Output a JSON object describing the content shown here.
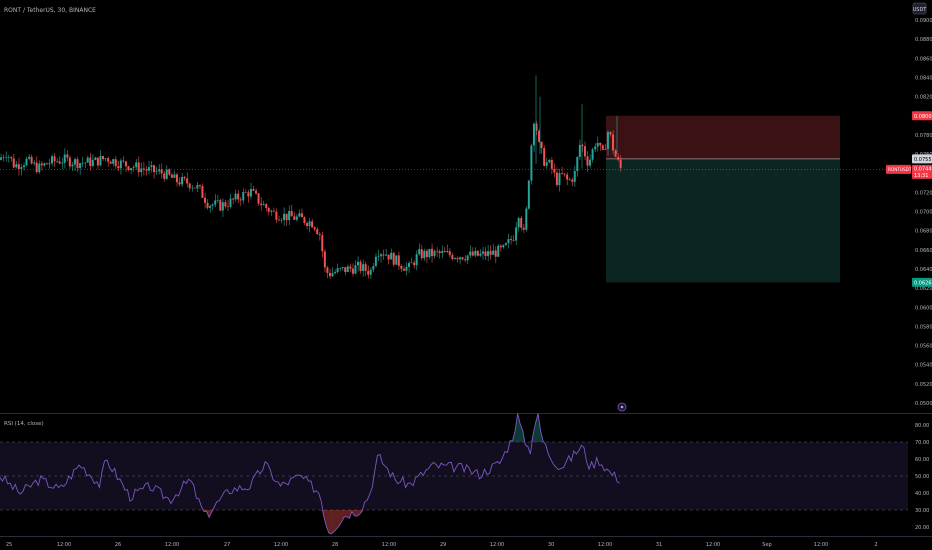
{
  "header": {
    "symbol_title": "RONT / TetherUS, 30, BINANCE",
    "currency_button": "USDT"
  },
  "price_axis": {
    "ticks": [
      "0.0900",
      "0.0880",
      "0.0860",
      "0.0840",
      "0.0820",
      "0.0800",
      "0.0780",
      "0.0760",
      "0.0740",
      "0.0720",
      "0.0700",
      "0.0680",
      "0.0660",
      "0.0640",
      "0.0620",
      "0.0600",
      "0.0580",
      "0.0560",
      "0.0540",
      "0.0520",
      "0.0500"
    ],
    "stop_label": "0.0800",
    "entry_label": "0.0755",
    "last_symbol": "RONTUSDT",
    "last_price": "0.0744",
    "countdown": "13:31",
    "target_label": "0.0626"
  },
  "rsi": {
    "title": "RSI (14, close)",
    "ticks": [
      "80.00",
      "70.00",
      "60.00",
      "50.00",
      "40.00",
      "30.00",
      "20.00"
    ]
  },
  "time_axis": {
    "ticks": [
      "25",
      "12:00",
      "26",
      "12:00",
      "27",
      "12:00",
      "28",
      "12:00",
      "29",
      "12:00",
      "30",
      "12:00",
      "31",
      "12:00",
      "Sep",
      "12:00",
      "2"
    ]
  },
  "colors": {
    "up": "#26a69a",
    "down": "#ef5350",
    "rsi_line": "#7e57c2",
    "stop_zone": "#3a1214",
    "target_zone": "#0b2622",
    "tag_red": "#f23645",
    "tag_teal": "#089981"
  },
  "events_icon": "event-marker-icon",
  "chart_data": {
    "type": "candlestick",
    "title": "RONT / TetherUS, 30, BINANCE",
    "ylim": [
      0.0494,
      0.0914
    ],
    "price_path": [
      [
        0,
        0.0754
      ],
      [
        8,
        0.0762
      ],
      [
        16,
        0.0748
      ],
      [
        28,
        0.0753
      ],
      [
        40,
        0.0745
      ],
      [
        52,
        0.0752
      ],
      [
        66,
        0.0754
      ],
      [
        80,
        0.0751
      ],
      [
        96,
        0.0752
      ],
      [
        108,
        0.0756
      ],
      [
        120,
        0.0751
      ],
      [
        135,
        0.0747
      ],
      [
        150,
        0.0743
      ],
      [
        165,
        0.074
      ],
      [
        178,
        0.0732
      ],
      [
        190,
        0.073
      ],
      [
        200,
        0.0724
      ],
      [
        210,
        0.0708
      ],
      [
        222,
        0.0706
      ],
      [
        232,
        0.071
      ],
      [
        242,
        0.0716
      ],
      [
        252,
        0.0721
      ],
      [
        262,
        0.0709
      ],
      [
        275,
        0.0698
      ],
      [
        288,
        0.0695
      ],
      [
        300,
        0.0693
      ],
      [
        315,
        0.0688
      ],
      [
        322,
        0.0675
      ],
      [
        326,
        0.064
      ],
      [
        330,
        0.0635
      ],
      [
        345,
        0.0639
      ],
      [
        360,
        0.0642
      ],
      [
        372,
        0.0637
      ],
      [
        378,
        0.066
      ],
      [
        388,
        0.0656
      ],
      [
        398,
        0.0648
      ],
      [
        410,
        0.064
      ],
      [
        420,
        0.0655
      ],
      [
        440,
        0.0656
      ],
      [
        460,
        0.0654
      ],
      [
        480,
        0.0654
      ],
      [
        492,
        0.0656
      ],
      [
        505,
        0.066
      ],
      [
        515,
        0.0674
      ],
      [
        520,
        0.07
      ],
      [
        526,
        0.0673
      ],
      [
        532,
        0.076
      ],
      [
        536,
        0.0803
      ],
      [
        540,
        0.077
      ],
      [
        546,
        0.0752
      ],
      [
        552,
        0.0748
      ],
      [
        558,
        0.0732
      ],
      [
        564,
        0.0738
      ],
      [
        570,
        0.0731
      ],
      [
        576,
        0.0738
      ],
      [
        582,
        0.0773
      ],
      [
        590,
        0.075
      ],
      [
        598,
        0.0776
      ],
      [
        604,
        0.0757
      ],
      [
        610,
        0.0786
      ],
      [
        616,
        0.076
      ],
      [
        622,
        0.0745
      ]
    ],
    "long_position": {
      "stop": 0.08,
      "entry": 0.0755,
      "target": 0.0626
    },
    "rsi_path": [
      [
        0,
        50
      ],
      [
        20,
        40
      ],
      [
        40,
        48
      ],
      [
        60,
        42
      ],
      [
        80,
        57
      ],
      [
        100,
        45
      ],
      [
        106,
        60
      ],
      [
        115,
        52
      ],
      [
        130,
        38
      ],
      [
        150,
        44
      ],
      [
        170,
        36
      ],
      [
        190,
        48
      ],
      [
        200,
        33
      ],
      [
        206,
        26
      ],
      [
        214,
        32
      ],
      [
        230,
        42
      ],
      [
        250,
        44
      ],
      [
        265,
        57
      ],
      [
        280,
        44
      ],
      [
        300,
        50
      ],
      [
        320,
        40
      ],
      [
        326,
        22
      ],
      [
        330,
        17
      ],
      [
        345,
        27
      ],
      [
        360,
        30
      ],
      [
        370,
        40
      ],
      [
        378,
        62
      ],
      [
        395,
        48
      ],
      [
        410,
        45
      ],
      [
        432,
        56
      ],
      [
        460,
        55
      ],
      [
        480,
        51
      ],
      [
        500,
        58
      ],
      [
        512,
        72
      ],
      [
        518,
        86
      ],
      [
        522,
        75
      ],
      [
        530,
        64
      ],
      [
        534,
        80
      ],
      [
        538,
        85
      ],
      [
        542,
        72
      ],
      [
        550,
        62
      ],
      [
        560,
        55
      ],
      [
        570,
        60
      ],
      [
        582,
        68
      ],
      [
        590,
        55
      ],
      [
        598,
        60
      ],
      [
        610,
        52
      ],
      [
        622,
        47
      ]
    ],
    "rsi_levels": {
      "upper": 70,
      "middle": 50,
      "lower": 30
    },
    "rsi_ylim": [
      15,
      88
    ]
  }
}
